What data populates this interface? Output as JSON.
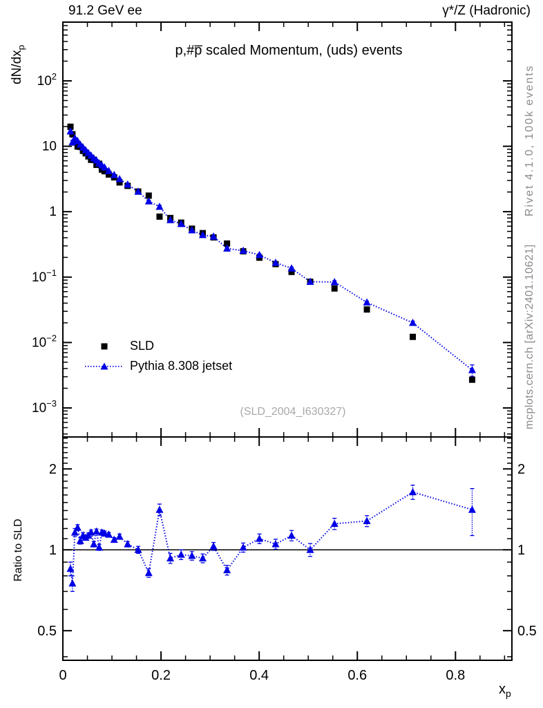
{
  "header": {
    "energy": "91.2 GeV ee",
    "process": "γ*/Z (Hadronic)"
  },
  "title": "p,#p̅ scaled Momentum, (uds) events",
  "watermark": "(SLD_2004_I630327)",
  "side_text": {
    "top": "Rivet 4.1.0,  100k events",
    "bottom": "mcplots.cern.ch [arXiv:2401.10621]"
  },
  "axes": {
    "y_main_label": "dN/dx",
    "y_main_sub": "p",
    "y_ratio_label": "Ratio to SLD",
    "x_label": "x",
    "x_sub": "p"
  },
  "legend": [
    {
      "label": "SLD",
      "marker": "black-square"
    },
    {
      "label": "Pythia 8.308 jetset",
      "marker": "blue-triangle-dotted-line"
    }
  ],
  "colors": {
    "mc": "#0000e6",
    "data": "#000000",
    "gray_text": "#8a8a8a",
    "watermark": "#a8a8a8"
  },
  "chart_data": {
    "type": "scatter",
    "layout": "two stacked panels, shared log x? no - linear x, log y both panels, ratio panel below",
    "title": "p,#p̅ scaled Momentum, (uds) events",
    "xlabel": "x_p",
    "xlim": [
      0,
      0.915
    ],
    "x_ticks": [
      0,
      0.2,
      0.4,
      0.6,
      0.8
    ],
    "x_minor_step": 0.05,
    "main": {
      "ylabel": "dN/dx_p",
      "yscale": "log",
      "ylim": [
        0.00036,
        790
      ],
      "y_ticks": [
        100,
        10,
        1,
        0.1,
        0.01,
        0.001
      ]
    },
    "ratio": {
      "ylabel": "Ratio to SLD",
      "yscale": "log",
      "ylim": [
        0.388,
        2.63
      ],
      "y_ticks": [
        2,
        1,
        0.5
      ],
      "ref_line": 1,
      "values": [
        0.85,
        0.75,
        1.16,
        1.21,
        1.08,
        1.13,
        1.11,
        1.13,
        1.16,
        1.05,
        1.17,
        1.02,
        1.16,
        1.15,
        1.14,
        1.09,
        1.12,
        1.05,
        1.0,
        0.82,
        1.41,
        0.93,
        0.96,
        0.95,
        0.93,
        1.03,
        0.84,
        1.02,
        1.1,
        1.05,
        1.13,
        1.0,
        1.25,
        1.28,
        1.64,
        1.41
      ],
      "errors": [
        0.05,
        0.05,
        0.04,
        0.03,
        0.03,
        0.03,
        0.025,
        0.025,
        0.025,
        0.025,
        0.025,
        0.025,
        0.025,
        0.025,
        0.02,
        0.02,
        0.025,
        0.025,
        0.03,
        0.03,
        0.07,
        0.04,
        0.04,
        0.035,
        0.035,
        0.035,
        0.035,
        0.04,
        0.045,
        0.045,
        0.05,
        0.055,
        0.06,
        0.06,
        0.1,
        0.28
      ]
    },
    "x": [
      0.0155,
      0.0195,
      0.0245,
      0.03,
      0.0355,
      0.041,
      0.0465,
      0.052,
      0.0575,
      0.063,
      0.0685,
      0.074,
      0.0795,
      0.085,
      0.0935,
      0.1045,
      0.1155,
      0.132,
      0.1535,
      0.175,
      0.197,
      0.219,
      0.241,
      0.263,
      0.285,
      0.307,
      0.3345,
      0.3675,
      0.4005,
      0.4335,
      0.466,
      0.504,
      0.5535,
      0.6195,
      0.713,
      0.834
    ],
    "series": [
      {
        "name": "SLD",
        "marker": "square",
        "color": "#000000",
        "values": [
          19.9,
          15.3,
          11.4,
          9.9,
          9.8,
          8.5,
          7.8,
          7.0,
          6.2,
          6.2,
          5.2,
          5.4,
          4.4,
          4.15,
          3.7,
          3.35,
          2.8,
          2.48,
          2.03,
          1.76,
          0.84,
          0.8,
          0.68,
          0.55,
          0.47,
          0.405,
          0.326,
          0.248,
          0.198,
          0.158,
          0.12,
          0.085,
          0.067,
          0.032,
          0.0122,
          0.0027
        ]
      },
      {
        "name": "Pythia 8.308 jetset",
        "marker": "triangle",
        "color": "#0000e6",
        "line": "dotted",
        "values": [
          16.9,
          11.5,
          13.2,
          12.0,
          10.6,
          9.6,
          8.7,
          7.9,
          7.2,
          6.55,
          6.1,
          5.5,
          5.1,
          4.75,
          4.2,
          3.65,
          3.15,
          2.6,
          2.03,
          1.44,
          1.19,
          0.745,
          0.65,
          0.52,
          0.44,
          0.417,
          0.274,
          0.253,
          0.218,
          0.166,
          0.136,
          0.085,
          0.084,
          0.041,
          0.02,
          0.0038
        ]
      }
    ],
    "legend_position": "left-middle of main panel",
    "grid": false
  }
}
